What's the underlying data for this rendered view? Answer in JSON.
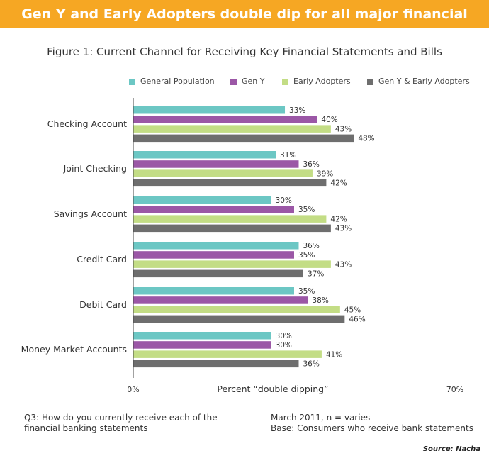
{
  "banner_title": "Gen Y and Early Adopters double dip for all major financial accounts",
  "chart_data": {
    "type": "bar",
    "orientation": "horizontal",
    "title": "Figure 1: Current Channel for Receiving Key Financial Statements and Bills",
    "categories": [
      "Checking Account",
      "Joint Checking",
      "Savings Account",
      "Credit Card",
      "Debit Card",
      "Money Market Accounts"
    ],
    "series": [
      {
        "name": "General Population",
        "color": "#6cc7c4",
        "values": [
          33,
          31,
          30,
          36,
          35,
          30
        ]
      },
      {
        "name": "Gen Y",
        "color": "#9b57a6",
        "values": [
          40,
          36,
          35,
          35,
          38,
          30
        ]
      },
      {
        "name": "Early Adopters",
        "color": "#c3dd85",
        "values": [
          43,
          39,
          42,
          43,
          45,
          41
        ]
      },
      {
        "name": "Gen Y & Early Adopters",
        "color": "#6e6e6e",
        "values": [
          48,
          42,
          43,
          37,
          46,
          36
        ]
      }
    ],
    "value_suffix": "%",
    "xlim": [
      0,
      70
    ],
    "xtick_labels": [
      "0%",
      "70%"
    ],
    "xlabel": "Percent “double dipping”",
    "ylabel": "",
    "grid": false,
    "legend_position": "top"
  },
  "footnotes": {
    "question_line1": "Q3: How do you currently receive each of the",
    "question_line2": "financial banking statements",
    "date_line": "March 2011, n = varies",
    "base_line": "Base: Consumers who receive bank statements",
    "source": "Source: Nacha"
  }
}
